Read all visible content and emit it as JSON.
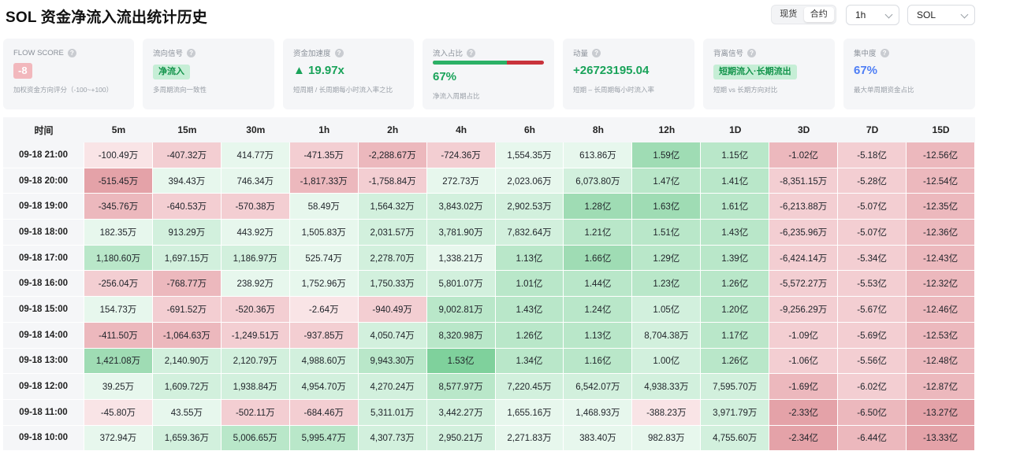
{
  "header": {
    "title": "SOL 资金净流入流出统计历史",
    "market_tabs": [
      {
        "label": "现货",
        "active": false
      },
      {
        "label": "合约",
        "active": true
      }
    ],
    "interval_select": "1h",
    "symbol_select": "SOL"
  },
  "cards": {
    "flow_score": {
      "label": "FLOW SCORE",
      "value": "-8",
      "desc": "加权资金方向评分（-100~+100）"
    },
    "signal": {
      "label": "流向信号",
      "value": "净流入",
      "desc": "多周期流向一致性"
    },
    "acceleration": {
      "label": "资金加速度",
      "value": "▲ 19.97x",
      "desc": "短周期 / 长周期每小时流入率之比"
    },
    "inflow_ratio": {
      "label": "流入占比",
      "value": "67%",
      "ratio": 0.67,
      "desc": "净流入周期占比"
    },
    "momentum": {
      "label": "动量",
      "value": "+26723195.04",
      "desc": "短期 – 长周期每小时流入率"
    },
    "divergence": {
      "label": "背离信号",
      "value": "短期流入·长期流出",
      "desc": "短期 vs 长期方向对比"
    },
    "concentration": {
      "label": "集中度",
      "value": "67%",
      "desc": "最大单周期资金占比"
    }
  },
  "colors": {
    "green_scale": [
      "#e7f7ed",
      "#d2f0dd",
      "#b9e7c9",
      "#9fdcb4",
      "#7fd19c"
    ],
    "red_scale": [
      "#f9e4e6",
      "#f3ced2",
      "#ecb8bd",
      "#e4a2a8",
      "#dc8e95"
    ]
  },
  "table": {
    "columns": [
      "时间",
      "5m",
      "15m",
      "30m",
      "1h",
      "2h",
      "4h",
      "6h",
      "8h",
      "12h",
      "1D",
      "3D",
      "7D",
      "15D"
    ],
    "rows": [
      {
        "time": "09-18 21:00",
        "cells": [
          [
            "-100.49万",
            -1
          ],
          [
            "-407.32万",
            -2
          ],
          [
            "414.77万",
            1
          ],
          [
            "-471.35万",
            -2
          ],
          [
            "-2,288.67万",
            -3
          ],
          [
            "-724.36万",
            -2
          ],
          [
            "1,554.35万",
            1
          ],
          [
            "613.86万",
            1
          ],
          [
            "1.59亿",
            4
          ],
          [
            "1.15亿",
            3
          ],
          [
            "-1.02亿",
            -3
          ],
          [
            "-5.18亿",
            -2
          ],
          [
            "-12.56亿",
            -3
          ]
        ]
      },
      {
        "time": "09-18 20:00",
        "cells": [
          [
            "-515.45万",
            -4
          ],
          [
            "394.43万",
            1
          ],
          [
            "746.34万",
            1
          ],
          [
            "-1,817.33万",
            -3
          ],
          [
            "-1,758.84万",
            -2
          ],
          [
            "272.73万",
            1
          ],
          [
            "2,023.06万",
            1
          ],
          [
            "6,073.80万",
            2
          ],
          [
            "1.47亿",
            3
          ],
          [
            "1.41亿",
            3
          ],
          [
            "-8,351.15万",
            -2
          ],
          [
            "-5.28亿",
            -2
          ],
          [
            "-12.54亿",
            -3
          ]
        ]
      },
      {
        "time": "09-18 19:00",
        "cells": [
          [
            "-345.76万",
            -3
          ],
          [
            "-640.53万",
            -2
          ],
          [
            "-570.38万",
            -2
          ],
          [
            "58.49万",
            1
          ],
          [
            "1,564.32万",
            2
          ],
          [
            "3,843.02万",
            2
          ],
          [
            "2,902.53万",
            2
          ],
          [
            "1.28亿",
            4
          ],
          [
            "1.63亿",
            4
          ],
          [
            "1.61亿",
            3
          ],
          [
            "-6,213.88万",
            -2
          ],
          [
            "-5.07亿",
            -2
          ],
          [
            "-12.35亿",
            -3
          ]
        ]
      },
      {
        "time": "09-18 18:00",
        "cells": [
          [
            "182.35万",
            1
          ],
          [
            "913.29万",
            2
          ],
          [
            "443.92万",
            1
          ],
          [
            "1,505.83万",
            1
          ],
          [
            "2,031.57万",
            2
          ],
          [
            "3,781.90万",
            2
          ],
          [
            "7,832.64万",
            2
          ],
          [
            "1.21亿",
            3
          ],
          [
            "1.51亿",
            3
          ],
          [
            "1.43亿",
            3
          ],
          [
            "-6,235.96万",
            -2
          ],
          [
            "-5.07亿",
            -2
          ],
          [
            "-12.36亿",
            -3
          ]
        ]
      },
      {
        "time": "09-18 17:00",
        "cells": [
          [
            "1,180.60万",
            3
          ],
          [
            "1,697.15万",
            2
          ],
          [
            "1,186.97万",
            2
          ],
          [
            "525.74万",
            1
          ],
          [
            "2,278.70万",
            2
          ],
          [
            "1,338.21万",
            1
          ],
          [
            "1.13亿",
            3
          ],
          [
            "1.66亿",
            4
          ],
          [
            "1.29亿",
            3
          ],
          [
            "1.39亿",
            3
          ],
          [
            "-6,424.14万",
            -2
          ],
          [
            "-5.34亿",
            -2
          ],
          [
            "-12.43亿",
            -3
          ]
        ]
      },
      {
        "time": "09-18 16:00",
        "cells": [
          [
            "-256.04万",
            -2
          ],
          [
            "-768.77万",
            -3
          ],
          [
            "238.92万",
            1
          ],
          [
            "1,752.96万",
            1
          ],
          [
            "1,750.33万",
            2
          ],
          [
            "5,801.07万",
            2
          ],
          [
            "1.01亿",
            3
          ],
          [
            "1.44亿",
            3
          ],
          [
            "1.23亿",
            3
          ],
          [
            "1.26亿",
            3
          ],
          [
            "-5,572.27万",
            -2
          ],
          [
            "-5.53亿",
            -2
          ],
          [
            "-12.32亿",
            -3
          ]
        ]
      },
      {
        "time": "09-18 15:00",
        "cells": [
          [
            "154.73万",
            1
          ],
          [
            "-691.52万",
            -2
          ],
          [
            "-520.36万",
            -2
          ],
          [
            "-2.64万",
            -1
          ],
          [
            "-940.49万",
            -2
          ],
          [
            "9,002.81万",
            3
          ],
          [
            "1.43亿",
            3
          ],
          [
            "1.24亿",
            3
          ],
          [
            "1.05亿",
            2
          ],
          [
            "1.20亿",
            3
          ],
          [
            "-9,256.29万",
            -2
          ],
          [
            "-5.67亿",
            -2
          ],
          [
            "-12.46亿",
            -3
          ]
        ]
      },
      {
        "time": "09-18 14:00",
        "cells": [
          [
            "-411.50万",
            -3
          ],
          [
            "-1,064.63万",
            -3
          ],
          [
            "-1,249.51万",
            -2
          ],
          [
            "-937.85万",
            -2
          ],
          [
            "4,050.74万",
            2
          ],
          [
            "8,320.98万",
            3
          ],
          [
            "1.26亿",
            3
          ],
          [
            "1.13亿",
            3
          ],
          [
            "8,704.38万",
            2
          ],
          [
            "1.17亿",
            3
          ],
          [
            "-1.09亿",
            -2
          ],
          [
            "-5.69亿",
            -2
          ],
          [
            "-12.53亿",
            -3
          ]
        ]
      },
      {
        "time": "09-18 13:00",
        "cells": [
          [
            "1,421.08万",
            4
          ],
          [
            "2,140.90万",
            2
          ],
          [
            "2,120.79万",
            2
          ],
          [
            "4,988.60万",
            2
          ],
          [
            "9,943.30万",
            3
          ],
          [
            "1.53亿",
            5
          ],
          [
            "1.34亿",
            3
          ],
          [
            "1.16亿",
            3
          ],
          [
            "1.00亿",
            2
          ],
          [
            "1.26亿",
            3
          ],
          [
            "-1.06亿",
            -2
          ],
          [
            "-5.56亿",
            -2
          ],
          [
            "-12.48亿",
            -3
          ]
        ]
      },
      {
        "time": "09-18 12:00",
        "cells": [
          [
            "39.25万",
            1
          ],
          [
            "1,609.72万",
            2
          ],
          [
            "1,938.84万",
            2
          ],
          [
            "4,954.70万",
            2
          ],
          [
            "4,270.24万",
            2
          ],
          [
            "8,577.97万",
            3
          ],
          [
            "7,220.45万",
            2
          ],
          [
            "6,542.07万",
            2
          ],
          [
            "4,938.33万",
            2
          ],
          [
            "7,595.70万",
            2
          ],
          [
            "-1.69亿",
            -3
          ],
          [
            "-6.02亿",
            -2
          ],
          [
            "-12.87亿",
            -3
          ]
        ]
      },
      {
        "time": "09-18 11:00",
        "cells": [
          [
            "-45.80万",
            -1
          ],
          [
            "43.55万",
            1
          ],
          [
            "-502.11万",
            -2
          ],
          [
            "-684.46万",
            -2
          ],
          [
            "5,311.01万",
            2
          ],
          [
            "3,442.27万",
            2
          ],
          [
            "1,655.16万",
            1
          ],
          [
            "1,468.93万",
            1
          ],
          [
            "-388.23万",
            -1
          ],
          [
            "3,971.79万",
            2
          ],
          [
            "-2.33亿",
            -4
          ],
          [
            "-6.50亿",
            -3
          ],
          [
            "-13.27亿",
            -4
          ]
        ]
      },
      {
        "time": "09-18 10:00",
        "cells": [
          [
            "372.94万",
            1
          ],
          [
            "1,659.36万",
            2
          ],
          [
            "5,006.65万",
            3
          ],
          [
            "5,995.47万",
            3
          ],
          [
            "4,307.73万",
            2
          ],
          [
            "2,950.21万",
            2
          ],
          [
            "2,271.83万",
            1
          ],
          [
            "383.40万",
            1
          ],
          [
            "982.83万",
            1
          ],
          [
            "4,755.60万",
            2
          ],
          [
            "-2.34亿",
            -4
          ],
          [
            "-6.44亿",
            -3
          ],
          [
            "-13.33亿",
            -4
          ]
        ]
      }
    ]
  }
}
